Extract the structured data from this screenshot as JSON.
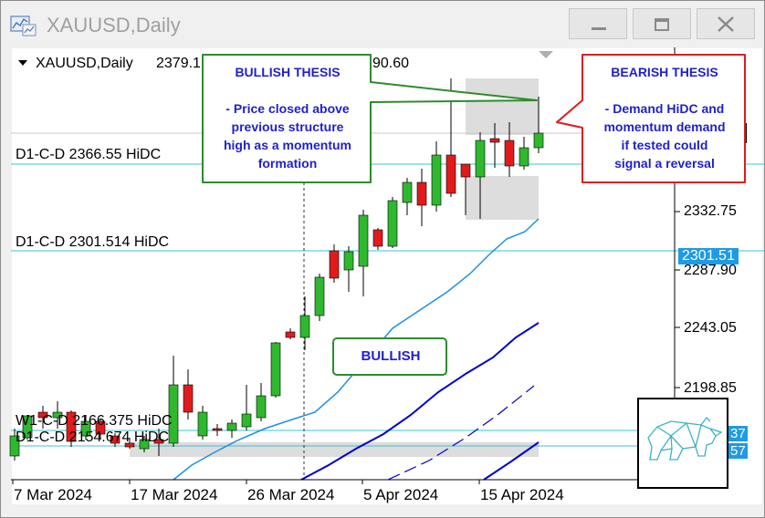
{
  "window": {
    "title": "XAUUSD,Daily",
    "minimize_icon": "minimize-icon",
    "maximize_icon": "restore-icon",
    "close_icon": "close-icon"
  },
  "chart": {
    "symbol_label": "XAUUSD,Daily",
    "ohlc_partial_1": "2379.1",
    "ohlc_partial_2": "90.60",
    "levels": [
      {
        "label": "D1-C-D 2366.55 HiDC",
        "price": 2366.55
      },
      {
        "label": "D1-C-D 2301.514 HiDC",
        "price": 2301.514
      },
      {
        "label": "W1-C-D 2166.375 HiDC",
        "price": 2166.375
      },
      {
        "label": "D1-C-D 2154.674 HiDC",
        "price": 2154.674
      }
    ],
    "price_axis": [
      "2332.75",
      "2287.90",
      "2243.05",
      "2198.85"
    ],
    "price_tag": "2301.51",
    "price_tag_partial": [
      "37",
      "57"
    ],
    "date_axis": [
      "7 Mar 2024",
      "17 Mar 2024",
      "26 Mar 2024",
      "5 Apr 2024",
      "15 Apr 2024"
    ],
    "colors": {
      "up": "#2eb82e",
      "down": "#e01b1b",
      "ma_fast": "#1e90e6",
      "ma_slow": "#0000cc",
      "level_line": "#3cc4d4",
      "callout_border": "#2e8b2e",
      "bearish_border": "#e01b1b",
      "text_blue": "#1f1fcf",
      "zone": "#d9d9d9"
    }
  },
  "callouts": {
    "bullish_thesis_title": "BULLISH THESIS",
    "bullish_thesis_body": [
      "- Price closed above",
      "previous structure",
      "high as a momentum",
      "formation"
    ],
    "bearish_thesis_title": "BEARISH THESIS",
    "bearish_thesis_body": [
      "- Demand HiDC and",
      "momentum demand",
      "if tested could",
      "signal a reversal"
    ],
    "bullish_label": "BULLISH"
  },
  "logo": {
    "icon": "bear-logo-icon"
  }
}
